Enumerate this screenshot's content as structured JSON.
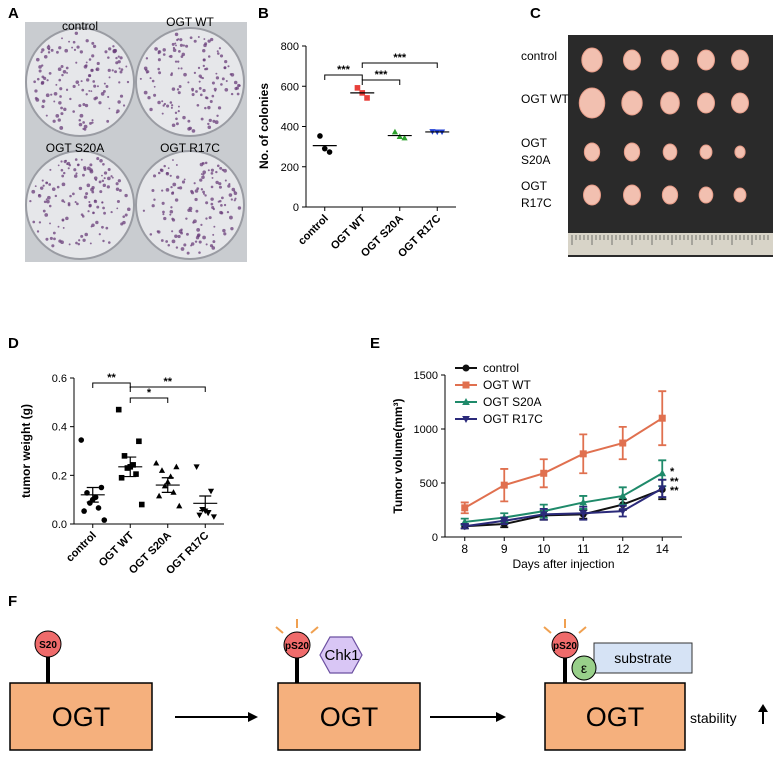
{
  "panel_labels": [
    "A",
    "B",
    "C",
    "D",
    "E",
    "F"
  ],
  "panel_a": {
    "plates": [
      "control",
      "OGT WT",
      "OGT S20A",
      "OGT R17C"
    ]
  },
  "panel_c": {
    "rows": [
      [
        "control"
      ],
      [
        "OGT WT"
      ],
      [
        "OGT",
        "S20A"
      ],
      [
        "OGT",
        "R17C"
      ]
    ]
  },
  "chart_data": [
    {
      "type": "dot",
      "y_label": "No. of colonies",
      "categories": [
        "control",
        "OGT WT",
        "OGT S20A",
        "OGT R17C"
      ],
      "colors": [
        "#000000",
        "#e8403a",
        "#2ca02c",
        "#1f3fd6"
      ],
      "markers": [
        "circle",
        "square",
        "triangle",
        "triangle-down"
      ],
      "points": [
        [
          353,
          290,
          273
        ],
        [
          592,
          567,
          542
        ],
        [
          373,
          350,
          343
        ],
        [
          375,
          373,
          373
        ]
      ],
      "means": [
        305,
        567,
        355,
        373
      ],
      "ylim": [
        0,
        800
      ],
      "yticks": [
        0,
        200,
        400,
        600,
        800
      ],
      "annotations": [
        "***",
        "***",
        "***"
      ]
    },
    {
      "type": "dot",
      "y_label": "tumor weight (g)",
      "categories": [
        "control",
        "OGT WT",
        "OGT S20A",
        "OGT R17C"
      ],
      "colors": [
        "#000000",
        "#000000",
        "#000000",
        "#000000"
      ],
      "markers": [
        "circle",
        "square",
        "triangle",
        "triangle-down"
      ],
      "points": [
        [
          0.345,
          0.15,
          0.128,
          0.11,
          0.1,
          0.086,
          0.066,
          0.053,
          0.016
        ],
        [
          0.47,
          0.34,
          0.28,
          0.243,
          0.235,
          0.23,
          0.205,
          0.19,
          0.08
        ],
        [
          0.25,
          0.235,
          0.22,
          0.195,
          0.173,
          0.156,
          0.13,
          0.115,
          0.074
        ],
        [
          0.235,
          0.135,
          0.06,
          0.054,
          0.045,
          0.037,
          0.03
        ]
      ],
      "means": [
        0.12,
        0.235,
        0.16,
        0.085
      ],
      "errors": [
        0.03,
        0.04,
        0.03,
        0.03
      ],
      "ylim": [
        0,
        0.6
      ],
      "yticks": [
        {
          "value": 0,
          "label": "0.0"
        },
        0.2,
        0.4,
        0.6
      ],
      "annotations": [
        "**",
        "*",
        "**"
      ]
    },
    {
      "type": "line",
      "x_label": "Days after injection",
      "y_label": "Tumor volume(mm³)",
      "categories": [
        "8",
        "9",
        "10",
        "11",
        "12",
        "14"
      ],
      "series": [
        {
          "name": "control",
          "color": "#111111",
          "marker": "circle",
          "values": [
            100,
            120,
            200,
            210,
            300,
            440
          ],
          "errors": [
            20,
            30,
            40,
            40,
            50,
            90
          ]
        },
        {
          "name": "OGT WT",
          "color": "#e0704f",
          "marker": "square",
          "values": [
            270,
            480,
            590,
            770,
            870,
            1100
          ],
          "errors": [
            50,
            150,
            130,
            180,
            150,
            250
          ]
        },
        {
          "name": "OGT S20A",
          "color": "#1f8a6a",
          "marker": "triangle",
          "values": [
            140,
            180,
            240,
            320,
            380,
            590
          ],
          "errors": [
            30,
            40,
            60,
            60,
            80,
            120
          ]
        },
        {
          "name": "OGT R17C",
          "color": "#2b2a7a",
          "marker": "triangle-down",
          "values": [
            100,
            150,
            210,
            220,
            240,
            450
          ],
          "errors": [
            20,
            30,
            50,
            60,
            50,
            80
          ]
        }
      ],
      "ylim": [
        0,
        1500
      ],
      "yticks": [
        0,
        500,
        1000,
        1500
      ],
      "annotations": [
        "*",
        "**",
        "**"
      ]
    }
  ],
  "panel_f": {
    "residue": "S20",
    "phospho_residue": "pS20",
    "kinase": "Chk1",
    "adaptor": "ε",
    "substrate": "substrate",
    "protein": "OGT",
    "outcome": "stability"
  }
}
